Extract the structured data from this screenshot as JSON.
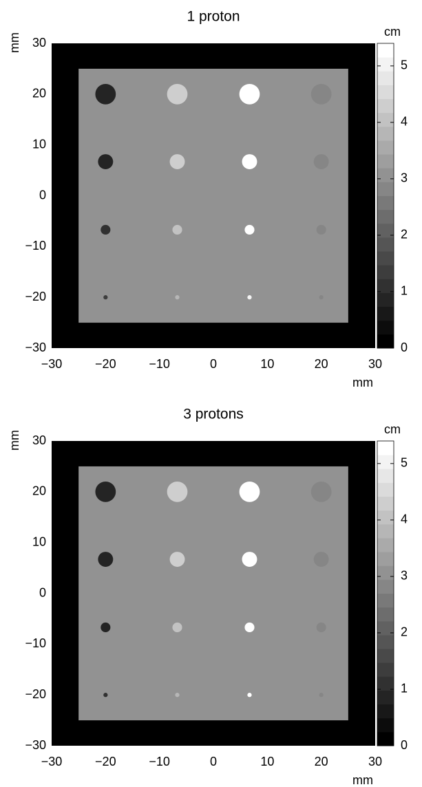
{
  "chart_data": [
    {
      "type": "heatmap",
      "title": "1 proton",
      "xlabel": "mm",
      "ylabel": "mm",
      "colorbar_label": "cm",
      "xlim": [
        -30,
        30
      ],
      "ylim": [
        -30,
        30
      ],
      "xticks": [
        {
          "value": -30,
          "label": "−30"
        },
        {
          "value": -20,
          "label": "−20"
        },
        {
          "value": -10,
          "label": "−10"
        },
        0,
        10,
        20,
        30
      ],
      "yticks": [
        {
          "value": -30,
          "label": "−30"
        },
        {
          "value": -20,
          "label": "−20"
        },
        {
          "value": -10,
          "label": "−10"
        },
        0,
        10,
        20,
        30
      ],
      "colorbar_lim": [
        0,
        5.4
      ],
      "colorbar_ticks": [
        0,
        1,
        2,
        3,
        4,
        5
      ],
      "colorbar_levels": 22,
      "background": 0,
      "regions": [
        {
          "x": [
            -25,
            25
          ],
          "y": [
            -25,
            25
          ],
          "value": 3.1
        }
      ],
      "spots": [
        {
          "x": -20,
          "y": 20,
          "r": 1.9,
          "value": 0.9
        },
        {
          "x": -6.7,
          "y": 20,
          "r": 1.9,
          "value": 4.3
        },
        {
          "x": 6.7,
          "y": 20,
          "r": 1.9,
          "value": 5.4
        },
        {
          "x": 20,
          "y": 20,
          "r": 1.9,
          "value": 2.8
        },
        {
          "x": -20,
          "y": 6.7,
          "r": 1.4,
          "value": 0.9
        },
        {
          "x": -6.7,
          "y": 6.7,
          "r": 1.4,
          "value": 4.3
        },
        {
          "x": 6.7,
          "y": 6.7,
          "r": 1.4,
          "value": 5.4
        },
        {
          "x": 20,
          "y": 6.7,
          "r": 1.4,
          "value": 2.8
        },
        {
          "x": -20,
          "y": -6.7,
          "r": 0.9,
          "value": 1.0
        },
        {
          "x": -6.7,
          "y": -6.7,
          "r": 0.9,
          "value": 4.0
        },
        {
          "x": 6.7,
          "y": -6.7,
          "r": 0.9,
          "value": 5.4
        },
        {
          "x": 20,
          "y": -6.7,
          "r": 0.9,
          "value": 2.8
        },
        {
          "x": -20,
          "y": -20,
          "r": 0.4,
          "value": 1.3
        },
        {
          "x": -6.7,
          "y": -20,
          "r": 0.4,
          "value": 3.9
        },
        {
          "x": 6.7,
          "y": -20,
          "r": 0.4,
          "value": 5.1
        },
        {
          "x": 20,
          "y": -20,
          "r": 0.4,
          "value": 2.9
        }
      ]
    },
    {
      "type": "heatmap",
      "title": "3 protons",
      "xlabel": "mm",
      "ylabel": "mm",
      "colorbar_label": "cm",
      "xlim": [
        -30,
        30
      ],
      "ylim": [
        -30,
        30
      ],
      "xticks": [
        {
          "value": -30,
          "label": "−30"
        },
        {
          "value": -20,
          "label": "−20"
        },
        {
          "value": -10,
          "label": "−10"
        },
        0,
        10,
        20,
        30
      ],
      "yticks": [
        {
          "value": -30,
          "label": "−30"
        },
        {
          "value": -20,
          "label": "−20"
        },
        {
          "value": -10,
          "label": "−10"
        },
        0,
        10,
        20,
        30
      ],
      "colorbar_lim": [
        0,
        5.4
      ],
      "colorbar_ticks": [
        0,
        1,
        2,
        3,
        4,
        5
      ],
      "colorbar_levels": 22,
      "background": 0,
      "regions": [
        {
          "x": [
            -25,
            25
          ],
          "y": [
            -25,
            25
          ],
          "value": 3.1
        }
      ],
      "spots": [
        {
          "x": -20,
          "y": 20,
          "r": 1.9,
          "value": 0.8
        },
        {
          "x": -6.7,
          "y": 20,
          "r": 1.9,
          "value": 4.4
        },
        {
          "x": 6.7,
          "y": 20,
          "r": 1.9,
          "value": 5.4
        },
        {
          "x": 20,
          "y": 20,
          "r": 1.9,
          "value": 2.8
        },
        {
          "x": -20,
          "y": 6.7,
          "r": 1.4,
          "value": 0.8
        },
        {
          "x": -6.7,
          "y": 6.7,
          "r": 1.4,
          "value": 4.3
        },
        {
          "x": 6.7,
          "y": 6.7,
          "r": 1.4,
          "value": 5.4
        },
        {
          "x": 20,
          "y": 6.7,
          "r": 1.4,
          "value": 2.8
        },
        {
          "x": -20,
          "y": -6.7,
          "r": 0.9,
          "value": 0.9
        },
        {
          "x": -6.7,
          "y": -6.7,
          "r": 0.9,
          "value": 4.1
        },
        {
          "x": 6.7,
          "y": -6.7,
          "r": 0.9,
          "value": 5.4
        },
        {
          "x": 20,
          "y": -6.7,
          "r": 0.9,
          "value": 2.8
        },
        {
          "x": -20,
          "y": -20,
          "r": 0.4,
          "value": 1.2
        },
        {
          "x": -6.7,
          "y": -20,
          "r": 0.4,
          "value": 3.9
        },
        {
          "x": 6.7,
          "y": -20,
          "r": 0.4,
          "value": 5.2
        },
        {
          "x": 20,
          "y": -20,
          "r": 0.4,
          "value": 2.9
        }
      ]
    }
  ]
}
